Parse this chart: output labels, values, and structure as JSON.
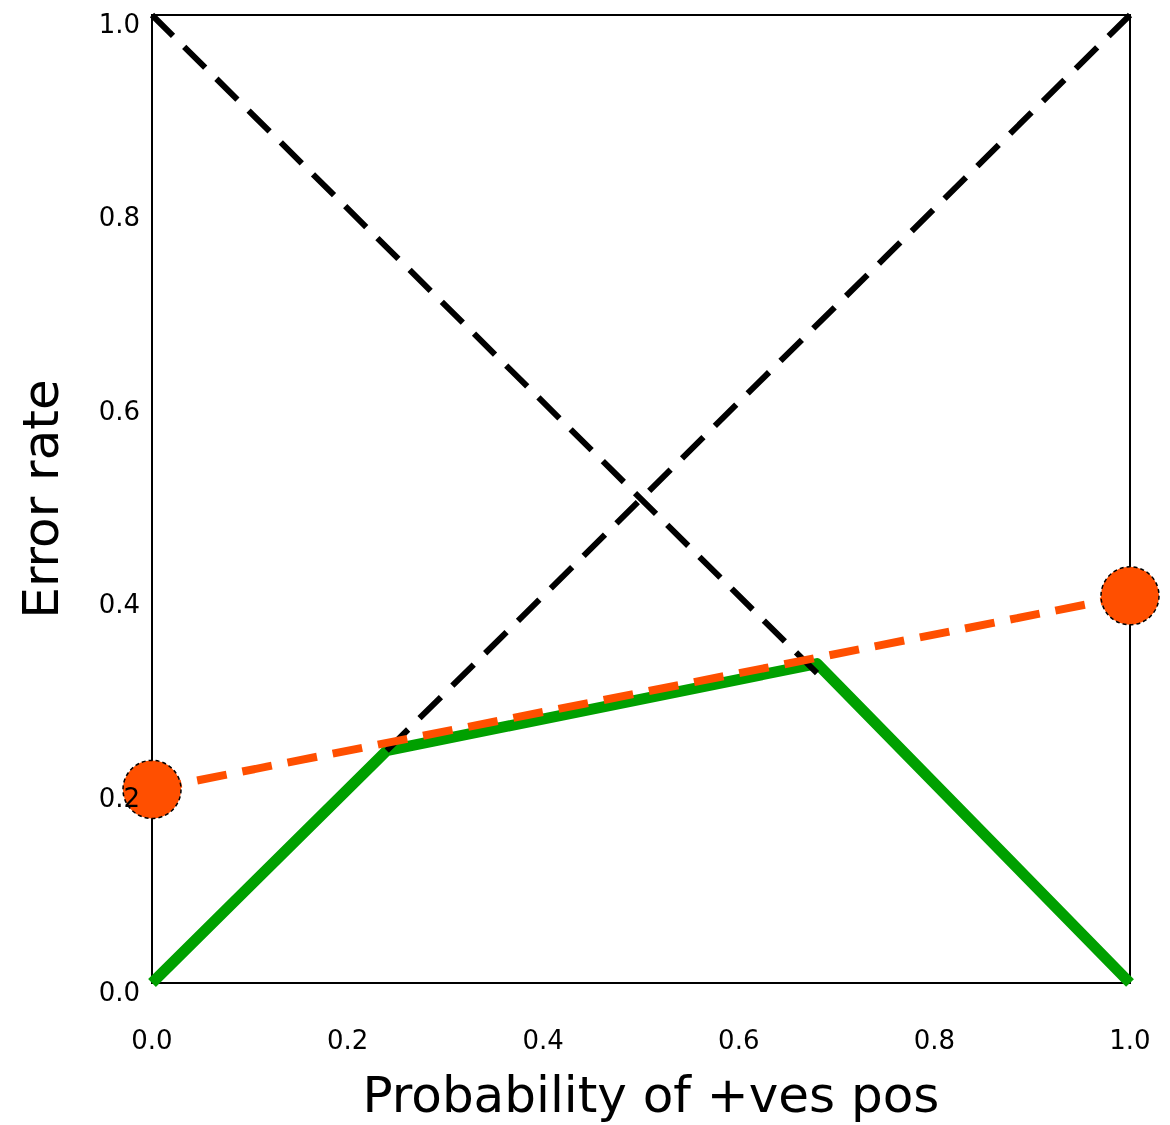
{
  "chart_data": {
    "type": "line",
    "xlabel": "Probability of +ves pos",
    "ylabel": "Error rate",
    "xlim": [
      0,
      1
    ],
    "ylim": [
      0,
      1
    ],
    "xticks": [
      {
        "value": 0,
        "label": "0.0"
      },
      0.2,
      0.4,
      0.6,
      0.8,
      {
        "value": 1,
        "label": "1.0"
      }
    ],
    "yticks": [
      {
        "value": 0,
        "label": "0.0"
      },
      0.2,
      0.4,
      0.6,
      0.8,
      {
        "value": 1,
        "label": "1.0"
      }
    ],
    "grid": false,
    "series": [
      {
        "color": "#000000",
        "x": [
          0,
          0.68
        ],
        "values": [
          1,
          0.32
        ],
        "line_style": "dashed",
        "marker": "none"
      },
      {
        "color": "#000000",
        "x": [
          0.24,
          1
        ],
        "values": [
          0.24,
          1
        ],
        "line_style": "dashed",
        "marker": "none"
      },
      {
        "color": "#ff4f00",
        "x": [
          0,
          1
        ],
        "values": [
          0.2,
          0.4
        ],
        "line_style": "dashed",
        "marker": "none"
      },
      {
        "type": "bubble",
        "color": "#ff4f00",
        "x": [
          0,
          1
        ],
        "values": [
          0.2,
          0.4
        ],
        "sizes": [
          1,
          1
        ]
      },
      {
        "color": "#00a000",
        "x": [
          0,
          0.24,
          0.68,
          1
        ],
        "values": [
          0,
          0.24,
          0.33,
          0
        ],
        "line_style": "solid",
        "marker": "none"
      }
    ]
  }
}
